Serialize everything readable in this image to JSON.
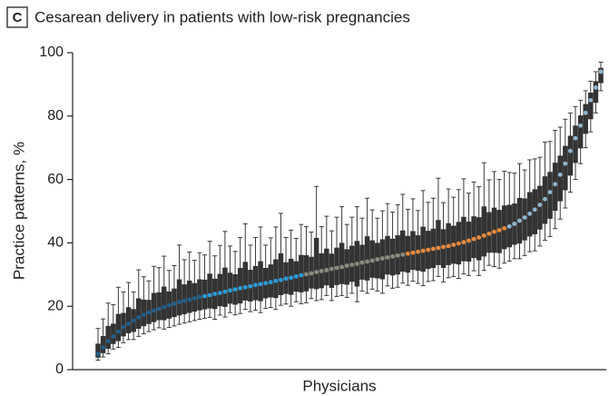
{
  "chart_data": {
    "type": "errorbar",
    "panel_label": "C",
    "title": "Cesarean delivery in patients with low-risk pregnancies",
    "xlabel": "Physicians",
    "ylabel": "Practice patterns, %",
    "ylim": [
      0,
      100
    ],
    "yticks": [
      0,
      20,
      40,
      60,
      80,
      100
    ],
    "series": [
      {
        "color": "#1f5f8b",
        "values": [
          5,
          7,
          9,
          10.5,
          12,
          13.5,
          14.5,
          15.5,
          16.5,
          17.3,
          18,
          18.6,
          19.2,
          19.8,
          20.3,
          20.8,
          21.3,
          21.7,
          22.1,
          22.5,
          22.9
        ],
        "error_minus": [
          2,
          3,
          4,
          4,
          5,
          5,
          5,
          6,
          6,
          6,
          6,
          6,
          6,
          7,
          7,
          7,
          7,
          7,
          7,
          7,
          7
        ],
        "error_plus": [
          8,
          9,
          12,
          10,
          14,
          11,
          13,
          9,
          15,
          12,
          10,
          14,
          13,
          16,
          11,
          12,
          18,
          13,
          15,
          12,
          14
        ]
      },
      {
        "color": "#2a9bd8",
        "values": [
          23.2,
          23.5,
          23.9,
          24.2,
          24.6,
          25,
          25.3,
          25.7,
          26,
          26.3,
          26.7,
          27,
          27.3,
          27.6,
          28,
          28.3,
          28.7,
          29,
          29.4,
          29.8
        ],
        "error_minus": [
          7,
          7,
          8,
          7,
          8,
          7,
          8,
          8,
          7,
          8,
          8,
          9,
          8,
          8,
          9,
          8,
          8,
          9,
          8,
          9
        ],
        "error_plus": [
          13,
          17,
          12,
          15,
          19,
          14,
          12,
          16,
          20,
          13,
          15,
          18,
          12,
          14,
          17,
          21,
          13,
          15,
          12,
          16
        ]
      },
      {
        "color": "#8a8a80",
        "values": [
          30.1,
          30.4,
          30.8,
          31.1,
          31.4,
          31.8,
          32.1,
          32.4,
          32.8,
          33.1,
          33.4,
          33.8,
          34.1,
          34.4,
          34.8,
          35.1,
          35.4,
          35.7,
          36,
          36.3
        ],
        "error_minus": [
          9,
          8,
          9,
          9,
          8,
          10,
          9,
          9,
          10,
          9,
          12,
          9,
          10,
          9,
          10,
          11,
          9,
          10,
          10,
          9
        ],
        "error_plus": [
          15,
          13,
          27,
          14,
          17,
          12,
          16,
          19,
          13,
          15,
          18,
          14,
          20,
          16,
          13,
          15,
          17,
          14,
          16,
          19
        ]
      },
      {
        "color": "#e8893a",
        "values": [
          36.6,
          36.9,
          37.2,
          37.5,
          37.8,
          38.1,
          38.4,
          38.7,
          39,
          39.4,
          39.8,
          40.2,
          40.7,
          41.2,
          41.7,
          42.3,
          42.9,
          43.5,
          44,
          44.6
        ],
        "error_minus": [
          10,
          9,
          10,
          11,
          10,
          10,
          9,
          11,
          10,
          10,
          11,
          10,
          11,
          10,
          12,
          11,
          10,
          11,
          12,
          11
        ],
        "error_plus": [
          14,
          17,
          13,
          19,
          15,
          16,
          22,
          14,
          18,
          15,
          17,
          20,
          15,
          18,
          16,
          23,
          17,
          19,
          16,
          18
        ]
      },
      {
        "color": "#8fb6cf",
        "values": [
          45.2,
          46,
          47,
          48,
          49.2,
          50.5,
          52,
          53.8,
          56,
          58.5,
          61.5,
          65,
          69,
          73,
          77,
          81,
          85,
          89,
          94
        ],
        "error_minus": [
          11,
          11,
          12,
          12,
          12,
          13,
          13,
          13,
          14,
          14,
          14,
          14,
          13,
          13,
          12,
          11,
          10,
          8,
          6
        ],
        "error_plus": [
          17,
          16,
          18,
          15,
          17,
          16,
          15,
          18,
          16,
          17,
          15,
          14,
          12,
          10,
          8,
          7,
          6,
          5,
          3
        ]
      }
    ]
  }
}
